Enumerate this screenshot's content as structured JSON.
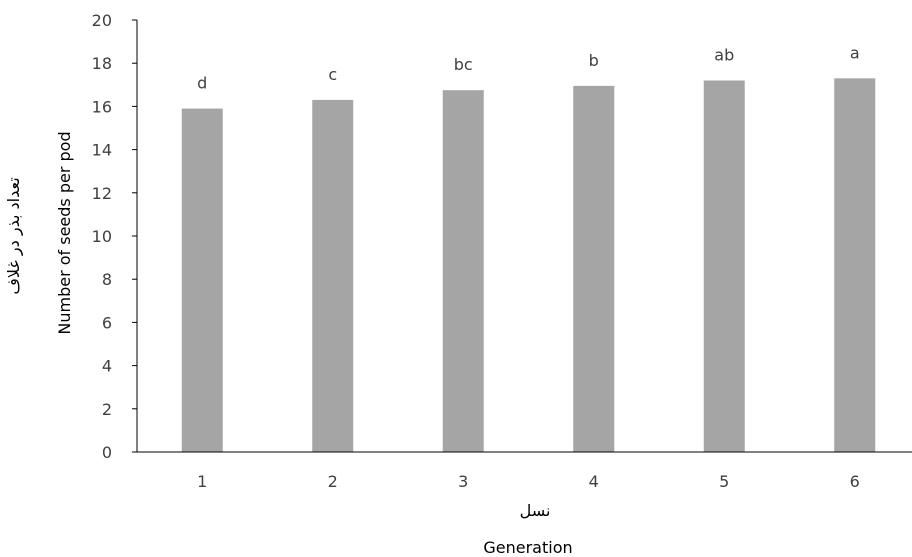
{
  "chart_data": {
    "type": "bar",
    "categories": [
      "1",
      "2",
      "3",
      "4",
      "5",
      "6"
    ],
    "values": [
      15.9,
      16.3,
      16.75,
      16.95,
      17.2,
      17.3
    ],
    "data_labels": [
      "d",
      "c",
      "bc",
      "b",
      "ab",
      "a"
    ],
    "xlabel": "نسل",
    "xlabel_en": "Generation",
    "ylabel": "تعداد بذر در غلاف",
    "ylabel_en": "Number of seeds per pod",
    "ylim": [
      0,
      20
    ],
    "yticks": [
      0,
      2,
      4,
      6,
      8,
      10,
      12,
      14,
      16,
      18,
      20
    ],
    "grid": false,
    "legend": "none",
    "bar_color": "#a5a5a5",
    "axis_color": "#000000",
    "text_color": "#404040"
  }
}
